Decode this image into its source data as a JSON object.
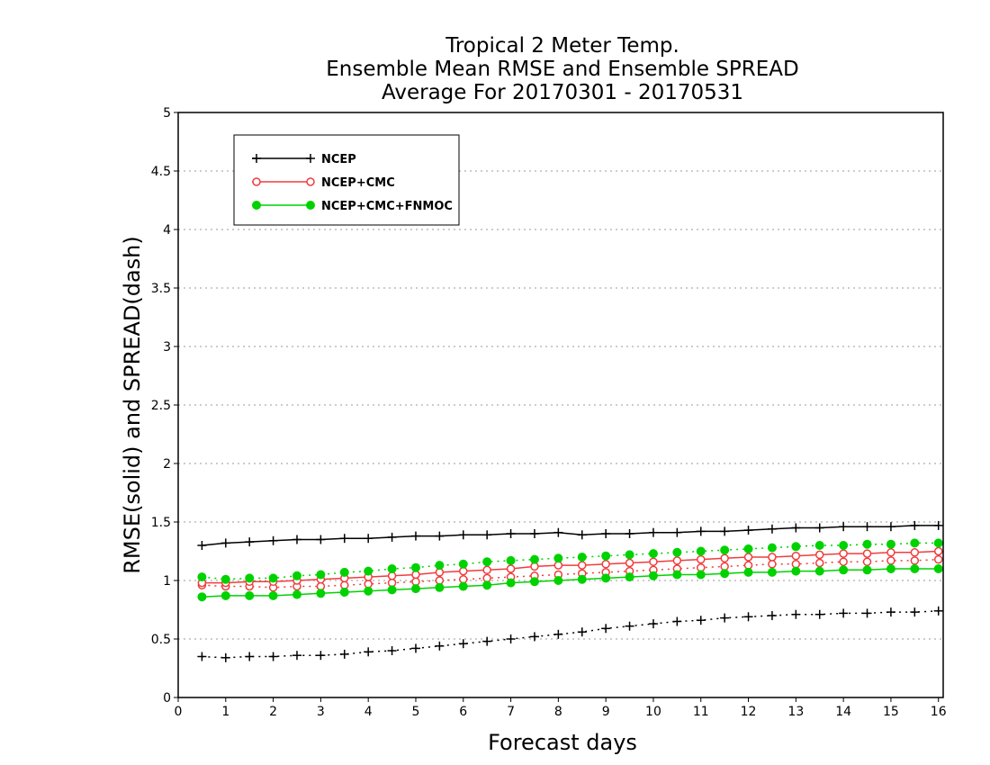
{
  "chart_data": {
    "type": "line",
    "title": [
      "Tropical 2 Meter Temp.",
      "Ensemble Mean RMSE and Ensemble SPREAD",
      "Average For 20170301 - 20170531"
    ],
    "xlabel": "Forecast days",
    "ylabel": "RMSE(solid) and SPREAD(dash)",
    "xlim": [
      0,
      16.1
    ],
    "ylim": [
      0,
      5
    ],
    "xticks": [
      0,
      1,
      2,
      3,
      4,
      5,
      6,
      7,
      8,
      9,
      10,
      11,
      12,
      13,
      14,
      15,
      16
    ],
    "xtick_labels": [
      "0",
      "1",
      "2",
      "3",
      "4",
      "5",
      "6",
      "7",
      "8",
      "9",
      "10",
      "11",
      "12",
      "13",
      "14",
      "15",
      "16"
    ],
    "yticks": [
      0,
      0.5,
      1,
      1.5,
      2,
      2.5,
      3,
      3.5,
      4,
      4.5,
      5
    ],
    "ytick_labels": [
      "0",
      "0.5",
      "1",
      "1.5",
      "2",
      "2.5",
      "3",
      "3.5",
      "4",
      "4.5",
      "5"
    ],
    "grid": true,
    "legend_position": "top-left",
    "x": [
      0.5,
      1,
      1.5,
      2,
      2.5,
      3,
      3.5,
      4,
      4.5,
      5,
      5.5,
      6,
      6.5,
      7,
      7.5,
      8,
      8.5,
      9,
      9.5,
      10,
      10.5,
      11,
      11.5,
      12,
      12.5,
      13,
      13.5,
      14,
      14.5,
      15,
      15.5,
      16
    ],
    "series": [
      {
        "name": "NCEP",
        "color": "#000000",
        "marker": "plus",
        "rmse": [
          1.3,
          1.32,
          1.33,
          1.34,
          1.35,
          1.35,
          1.36,
          1.36,
          1.37,
          1.38,
          1.38,
          1.39,
          1.39,
          1.4,
          1.4,
          1.41,
          1.39,
          1.4,
          1.4,
          1.41,
          1.41,
          1.42,
          1.42,
          1.43,
          1.44,
          1.45,
          1.45,
          1.46,
          1.46,
          1.46,
          1.47,
          1.47
        ],
        "spread": [
          0.35,
          0.34,
          0.35,
          0.35,
          0.36,
          0.36,
          0.37,
          0.39,
          0.4,
          0.42,
          0.44,
          0.46,
          0.48,
          0.5,
          0.52,
          0.54,
          0.56,
          0.59,
          0.61,
          0.63,
          0.65,
          0.66,
          0.68,
          0.69,
          0.7,
          0.71,
          0.71,
          0.72,
          0.72,
          0.73,
          0.73,
          0.74
        ]
      },
      {
        "name": "NCEP+CMC",
        "color": "#f03c3c",
        "marker": "open-circle",
        "rmse": [
          0.98,
          0.98,
          0.99,
          0.99,
          1.0,
          1.01,
          1.02,
          1.03,
          1.04,
          1.05,
          1.07,
          1.08,
          1.09,
          1.1,
          1.12,
          1.13,
          1.13,
          1.14,
          1.15,
          1.16,
          1.17,
          1.18,
          1.19,
          1.2,
          1.2,
          1.21,
          1.22,
          1.23,
          1.23,
          1.24,
          1.24,
          1.25
        ],
        "spread": [
          0.96,
          0.95,
          0.95,
          0.94,
          0.95,
          0.95,
          0.96,
          0.97,
          0.98,
          0.99,
          1.0,
          1.01,
          1.02,
          1.03,
          1.04,
          1.05,
          1.06,
          1.07,
          1.08,
          1.09,
          1.1,
          1.11,
          1.12,
          1.13,
          1.14,
          1.14,
          1.15,
          1.16,
          1.16,
          1.17,
          1.17,
          1.18
        ]
      },
      {
        "name": "NCEP+CMC+FNMOC",
        "color": "#00d200",
        "marker": "filled-circle",
        "rmse": [
          0.86,
          0.87,
          0.87,
          0.87,
          0.88,
          0.89,
          0.9,
          0.91,
          0.92,
          0.93,
          0.94,
          0.95,
          0.96,
          0.98,
          0.99,
          1.0,
          1.01,
          1.02,
          1.03,
          1.04,
          1.05,
          1.05,
          1.06,
          1.07,
          1.07,
          1.08,
          1.08,
          1.09,
          1.09,
          1.1,
          1.1,
          1.1
        ],
        "spread": [
          1.03,
          1.01,
          1.02,
          1.02,
          1.04,
          1.05,
          1.07,
          1.08,
          1.1,
          1.11,
          1.13,
          1.14,
          1.16,
          1.17,
          1.18,
          1.19,
          1.2,
          1.21,
          1.22,
          1.23,
          1.24,
          1.25,
          1.26,
          1.27,
          1.28,
          1.29,
          1.3,
          1.3,
          1.31,
          1.31,
          1.32,
          1.32
        ]
      }
    ]
  }
}
